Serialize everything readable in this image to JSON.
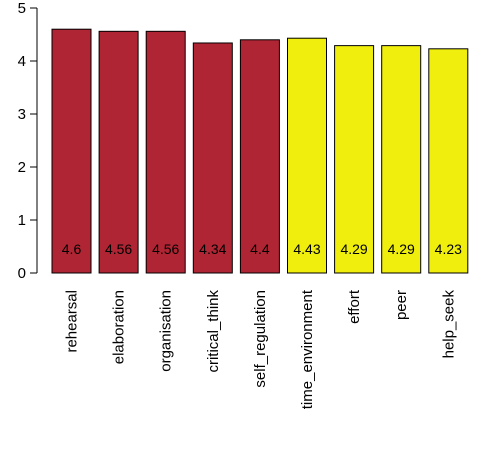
{
  "chart_data": {
    "type": "bar",
    "categories": [
      "rehearsal",
      "elaboration",
      "organisation",
      "critical_think",
      "self_regulation",
      "time_environment",
      "effort",
      "peer",
      "help_seek"
    ],
    "values": [
      4.6,
      4.56,
      4.56,
      4.34,
      4.4,
      4.43,
      4.29,
      4.29,
      4.23
    ],
    "data_labels": [
      "4.6",
      "4.56",
      "4.56",
      "4.34",
      "4.4",
      "4.43",
      "4.29",
      "4.29",
      "4.23"
    ],
    "bar_colors": [
      "#b02533",
      "#b02533",
      "#b02533",
      "#b02533",
      "#b02533",
      "#f0ee0c",
      "#f0ee0c",
      "#f0ee0c",
      "#f0ee0c"
    ],
    "yticks": [
      0,
      1,
      2,
      3,
      4,
      5
    ],
    "ylim": [
      0,
      5
    ],
    "title": "",
    "xlabel": "",
    "ylabel": "",
    "grid": false,
    "legend": "none"
  }
}
